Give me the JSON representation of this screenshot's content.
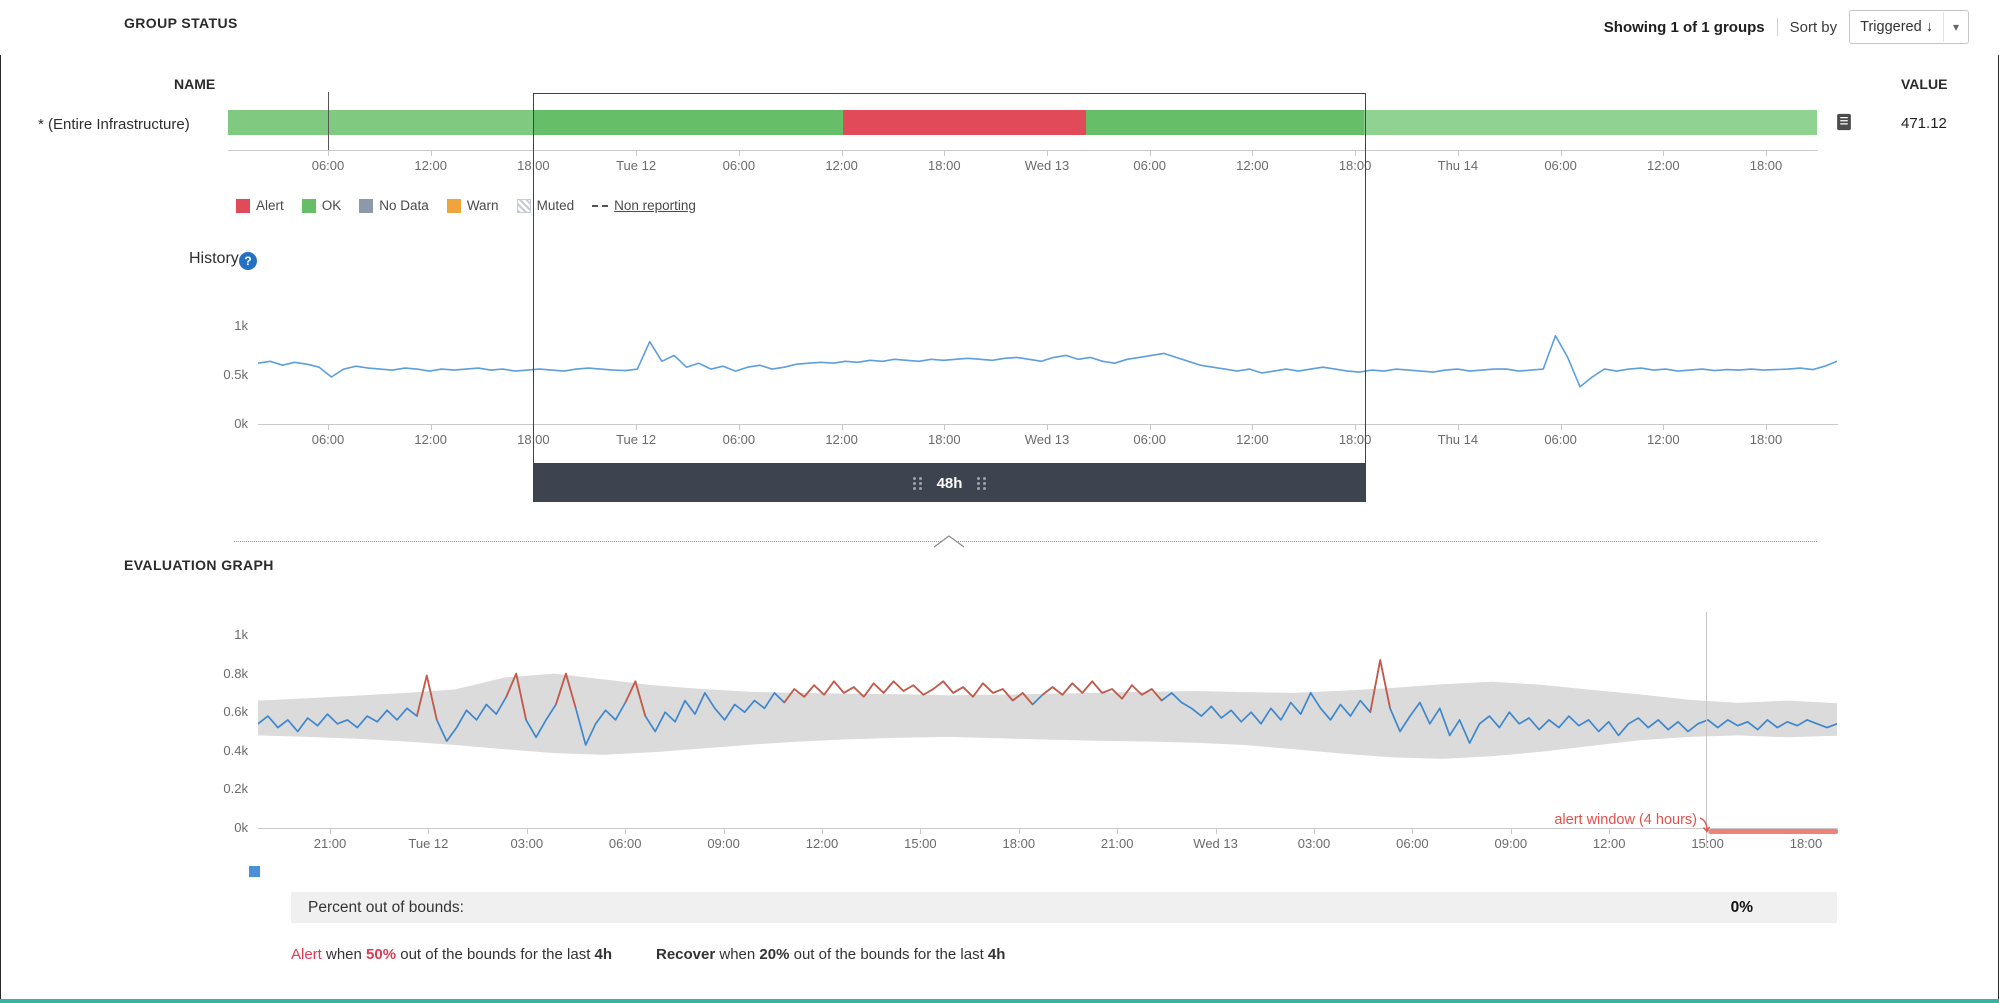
{
  "header": {
    "group_status": "GROUP STATUS",
    "showing": "Showing 1 of 1 groups",
    "sort_by": "Sort by",
    "sort_value": "Triggered ↓"
  },
  "group_table": {
    "name_header": "NAME",
    "value_header": "VALUE",
    "row_name": "* (Entire Infrastructure)",
    "row_value": "471.12",
    "status_segments": [
      {
        "status": "ok-dim-left",
        "color": "#7fca80",
        "pct": 19.2
      },
      {
        "status": "ok",
        "color": "#66bf68",
        "pct": 19.5
      },
      {
        "status": "alert",
        "color": "#e04a59",
        "pct": 15.3
      },
      {
        "status": "ok",
        "color": "#66bf68",
        "pct": 17.5
      },
      {
        "status": "ok-dim-right",
        "color": "#8fd291",
        "pct": 28.5
      }
    ],
    "time_labels": [
      "06:00",
      "12:00",
      "18:00",
      "Tue 12",
      "06:00",
      "12:00",
      "18:00",
      "Wed 13",
      "06:00",
      "12:00",
      "18:00",
      "Thu 14",
      "06:00",
      "12:00",
      "18:00"
    ],
    "legend": [
      {
        "label": "Alert",
        "type": "swatch",
        "color": "#e04a59"
      },
      {
        "label": "OK",
        "type": "swatch",
        "color": "#66bf68"
      },
      {
        "label": "No Data",
        "type": "swatch",
        "color": "#8d99aa"
      },
      {
        "label": "Warn",
        "type": "swatch",
        "color": "#f2a43c"
      },
      {
        "label": "Muted",
        "type": "hatch",
        "color": "#c6ccd4"
      },
      {
        "label": "Non reporting",
        "type": "dash",
        "color": "#555555"
      }
    ]
  },
  "history": {
    "title": "History",
    "help": "?",
    "y_labels": [
      "1k",
      "0.5k",
      "0k"
    ],
    "line_color": "#5d9fdd",
    "series": [
      620,
      640,
      600,
      630,
      610,
      580,
      480,
      560,
      590,
      570,
      560,
      550,
      570,
      560,
      540,
      560,
      550,
      560,
      570,
      550,
      560,
      540,
      550,
      560,
      550,
      540,
      560,
      570,
      560,
      550,
      545,
      560,
      840,
      640,
      700,
      580,
      620,
      560,
      590,
      540,
      580,
      600,
      560,
      580,
      610,
      620,
      630,
      620,
      640,
      630,
      650,
      640,
      660,
      650,
      640,
      660,
      650,
      660,
      670,
      660,
      650,
      670,
      680,
      660,
      640,
      680,
      700,
      660,
      680,
      640,
      620,
      660,
      680,
      700,
      720,
      680,
      640,
      600,
      580,
      560,
      540,
      560,
      520,
      540,
      560,
      540,
      560,
      580,
      560,
      540,
      530,
      550,
      540,
      560,
      550,
      540,
      530,
      550,
      560,
      540,
      550,
      560,
      560,
      540,
      550,
      560,
      900,
      680,
      380,
      480,
      560,
      540,
      560,
      570,
      550,
      560,
      540,
      550,
      560,
      545,
      555,
      550,
      560,
      550,
      555,
      560,
      570,
      555,
      590,
      640
    ]
  },
  "selection": {
    "label": "48h"
  },
  "evaluation": {
    "title": "EVALUATION GRAPH",
    "y_labels": [
      "1k",
      "0.8k",
      "0.6k",
      "0.4k",
      "0.2k",
      "0k"
    ],
    "x_labels": [
      "21:00",
      "Tue 12",
      "03:00",
      "06:00",
      "09:00",
      "12:00",
      "15:00",
      "18:00",
      "21:00",
      "Wed 13",
      "03:00",
      "06:00",
      "09:00",
      "12:00",
      "15:00",
      "18:00"
    ],
    "alert_window": "alert window (4 hours)",
    "line_color": "#3e87cd",
    "out_color": "#cd5740",
    "band_color": "#dbdbdb",
    "band_upper": [
      660,
      672,
      686,
      700,
      718,
      780,
      800,
      770,
      740,
      720,
      705,
      700,
      696,
      693,
      688,
      690,
      696,
      700,
      706,
      710,
      704,
      700,
      712,
      726,
      745,
      758,
      742,
      716,
      692,
      664,
      648,
      660,
      646
    ],
    "band_lower": [
      480,
      472,
      462,
      448,
      430,
      408,
      388,
      380,
      392,
      412,
      432,
      448,
      460,
      468,
      472,
      465,
      458,
      452,
      448,
      442,
      430,
      408,
      385,
      366,
      358,
      372,
      395,
      425,
      455,
      472,
      480,
      470,
      478
    ],
    "series": [
      540,
      580,
      520,
      560,
      500,
      570,
      530,
      590,
      540,
      560,
      520,
      580,
      550,
      610,
      560,
      620,
      580,
      790,
      560,
      450,
      520,
      610,
      560,
      640,
      590,
      680,
      800,
      560,
      470,
      560,
      640,
      800,
      620,
      430,
      540,
      610,
      560,
      650,
      760,
      580,
      500,
      600,
      550,
      660,
      590,
      700,
      620,
      560,
      640,
      600,
      660,
      620,
      700,
      650,
      720,
      680,
      740,
      690,
      760,
      700,
      730,
      680,
      750,
      700,
      760,
      710,
      740,
      690,
      720,
      760,
      700,
      730,
      680,
      750,
      700,
      720,
      660,
      700,
      640,
      690,
      730,
      690,
      750,
      700,
      760,
      700,
      720,
      670,
      740,
      690,
      720,
      660,
      700,
      650,
      620,
      580,
      630,
      570,
      610,
      550,
      600,
      540,
      620,
      560,
      650,
      590,
      700,
      620,
      560,
      640,
      580,
      660,
      600,
      870,
      620,
      500,
      580,
      650,
      540,
      620,
      480,
      560,
      440,
      540,
      580,
      520,
      600,
      540,
      570,
      510,
      560,
      520,
      580,
      530,
      560,
      500,
      550,
      480,
      540,
      570,
      520,
      560,
      510,
      550,
      500,
      540,
      560,
      520,
      560,
      530,
      550,
      510,
      560,
      520,
      550,
      530,
      560,
      540,
      520,
      540
    ]
  },
  "summary": {
    "percent_label": "Percent out of bounds:",
    "percent_value": "0%"
  },
  "conditions": {
    "alert_word": "Alert",
    "alert_when": " when ",
    "alert_pct": "50%",
    "alert_rest": " out of the bounds for the last ",
    "alert_dur": "4h",
    "recover_word": "Recover",
    "recover_when": " when ",
    "recover_pct": "20%",
    "recover_rest": " out of the bounds for the last ",
    "recover_dur": "4h"
  }
}
